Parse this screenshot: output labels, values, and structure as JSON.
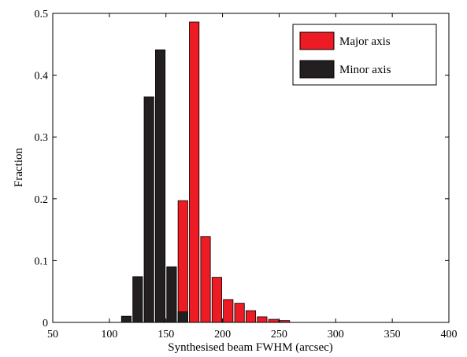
{
  "chart_data": {
    "type": "bar",
    "xlabel": "Synthesised beam FWHM (arcsec)",
    "ylabel": "Fraction",
    "xlim": [
      50,
      400
    ],
    "ylim": [
      0,
      0.5
    ],
    "xticks": [
      50,
      100,
      150,
      200,
      250,
      300,
      350,
      400
    ],
    "xtick_labels": [
      "50",
      "100",
      "150",
      "200",
      "250",
      "300",
      "350",
      "400"
    ],
    "yticks": [
      0,
      0.1,
      0.2,
      0.3,
      0.4,
      0.5
    ],
    "ytick_labels": [
      "0",
      "0.1",
      "0.2",
      "0.3",
      "0.4",
      "0.5"
    ],
    "grid": false,
    "legend_position": "top-right",
    "series": [
      {
        "name": "Major axis",
        "color": "#ed1c24",
        "x": [
          145,
          155,
          165,
          175,
          185,
          195,
          205,
          215,
          225,
          235,
          245,
          255
        ],
        "values": [
          0.001,
          0.002,
          0.197,
          0.486,
          0.139,
          0.073,
          0.037,
          0.031,
          0.019,
          0.009,
          0.005,
          0.003
        ]
      },
      {
        "name": "Minor axis",
        "color": "#231f20",
        "x": [
          115,
          125,
          135,
          145,
          155,
          165
        ],
        "values": [
          0.01,
          0.074,
          0.365,
          0.441,
          0.09,
          0.017
        ]
      }
    ]
  }
}
